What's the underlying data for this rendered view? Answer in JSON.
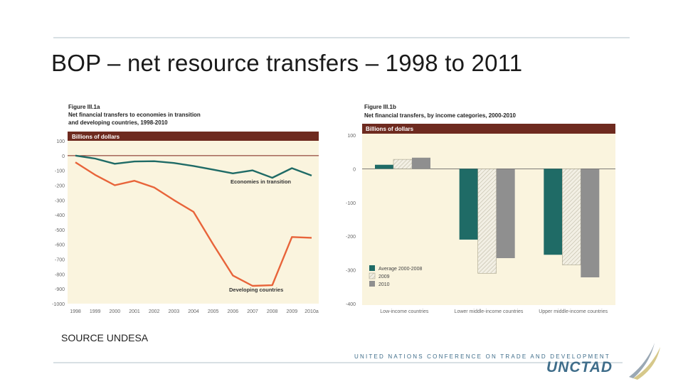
{
  "slide": {
    "title": "BOP – net resource transfers – 1998 to 2011",
    "source": "SOURCE UNDESA",
    "org_text": "UNITED NATIONS CONFERENCE ON TRADE AND DEVELOPMENT",
    "org_logo": "UNCTAD"
  },
  "colors": {
    "header_band": "#6e2a1f",
    "plot_bg": "#faf4de",
    "transition_line": "#1f6b66",
    "developing_line": "#e8643a",
    "bar_avg": "#1f6b66",
    "bar_2009": "#f2efe4",
    "bar_2010": "#8f8f8f"
  },
  "chart_data": [
    {
      "type": "line",
      "figure_label": "Figure III.1a",
      "title_line1": "Net financial transfers to economies in transition",
      "title_line2": "and developing countries, 1998-2010",
      "unit_label": "Billions of dollars",
      "x": [
        "1998",
        "1999",
        "2000",
        "2001",
        "2002",
        "2003",
        "2004",
        "2005",
        "2006",
        "2007",
        "2008",
        "2009",
        "2010a"
      ],
      "ylim": [
        -1000,
        100
      ],
      "yticks": [
        100,
        0,
        -100,
        -200,
        -300,
        -400,
        -500,
        -600,
        -700,
        -800,
        -900,
        -1000
      ],
      "series": [
        {
          "name": "Economies in transition",
          "values": [
            0,
            -20,
            -55,
            -40,
            -38,
            -50,
            -70,
            -95,
            -120,
            -100,
            -150,
            -85,
            -135
          ]
        },
        {
          "name": "Developing countries",
          "values": [
            -45,
            -130,
            -200,
            -170,
            -215,
            -300,
            -380,
            -600,
            -810,
            -880,
            -875,
            -550,
            -555
          ]
        }
      ]
    },
    {
      "type": "bar",
      "figure_label": "Figure III.1b",
      "title_line1": "Net financial transfers, by income categories, 2000-2010",
      "unit_label": "Billions of dollars",
      "categories": [
        "Low-income countries",
        "Lower middle-income countries",
        "Upper middle-income countries"
      ],
      "ylim": [
        -400,
        100
      ],
      "yticks": [
        100,
        0,
        -100,
        -200,
        -300,
        -400
      ],
      "series": [
        {
          "name": "Average 2000-2008",
          "values": [
            12,
            -210,
            -255
          ]
        },
        {
          "name": "2009",
          "values": [
            28,
            -310,
            -285
          ]
        },
        {
          "name": "2010",
          "values": [
            33,
            -265,
            -322
          ]
        }
      ]
    }
  ]
}
